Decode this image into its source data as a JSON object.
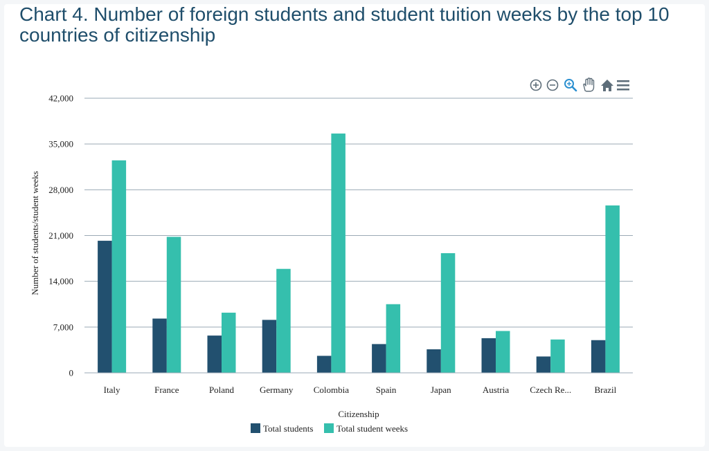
{
  "page": {
    "title": "Chart 4. Number of foreign students and student tuition weeks by the top 10 countries of citizenship"
  },
  "colors": {
    "total_students": "#22506f",
    "total_student_weeks": "#35bfad",
    "grid": "#9aa9b5",
    "toolbar_icon": "#5e6e7a",
    "toolbar_zoom_active": "#2a8fd0"
  },
  "toolbar": {
    "icons": [
      "zoom-in-icon",
      "zoom-out-icon",
      "selection-zoom-icon",
      "pan-hand-icon",
      "home-reset-icon",
      "menu-icon"
    ]
  },
  "chart_data": {
    "type": "bar",
    "title": "",
    "xlabel": "Citizenship",
    "ylabel": "Number of students/student weeks",
    "ylim": [
      0,
      42000
    ],
    "yticks": [
      0,
      7000,
      14000,
      21000,
      28000,
      35000,
      42000
    ],
    "ytick_labels": [
      "0",
      "7,000",
      "14,000",
      "21,000",
      "28,000",
      "35,000",
      "42,000"
    ],
    "grid": true,
    "legend_position": "bottom-center",
    "categories": [
      "Italy",
      "France",
      "Poland",
      "Germany",
      "Colombia",
      "Spain",
      "Japan",
      "Austria",
      "Czech Re...",
      "Brazil"
    ],
    "series": [
      {
        "name": "Total students",
        "values": [
          20200,
          8300,
          5700,
          8100,
          2600,
          4400,
          3600,
          5300,
          2500,
          5000
        ]
      },
      {
        "name": "Total student weeks",
        "values": [
          32500,
          20800,
          9200,
          15900,
          36600,
          10500,
          18300,
          6400,
          5100,
          25600
        ]
      }
    ]
  }
}
